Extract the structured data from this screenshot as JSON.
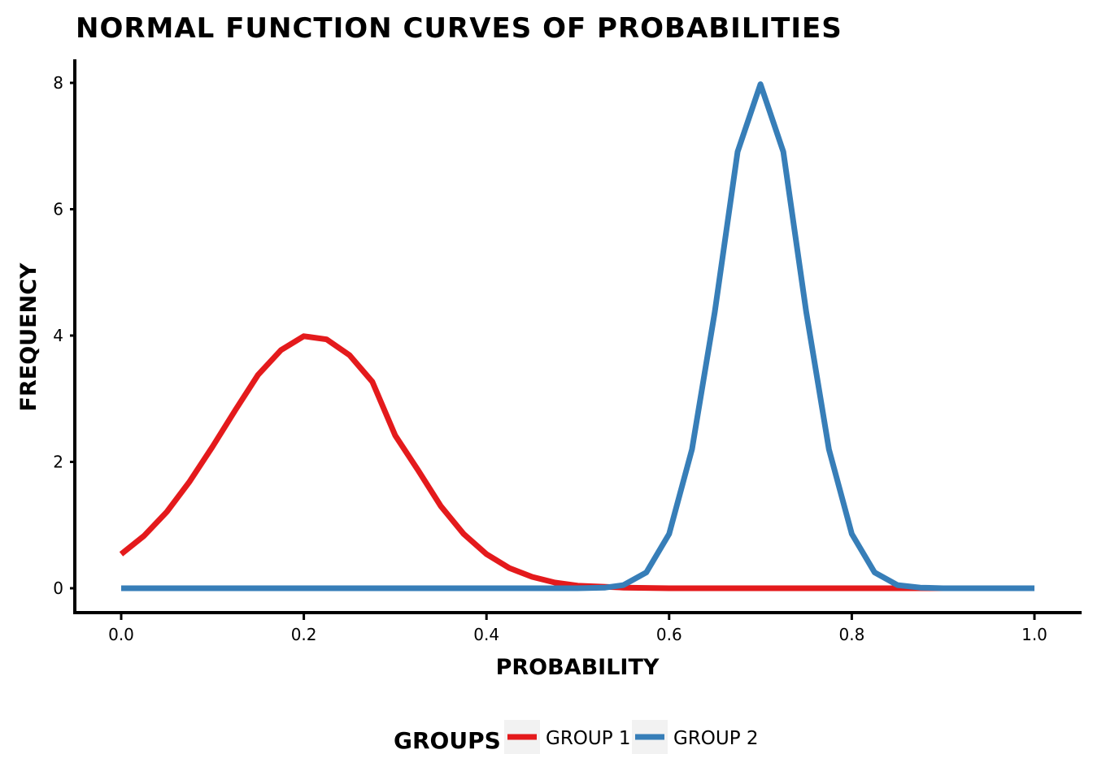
{
  "chart_data": {
    "type": "line",
    "title": "NORMAL FUNCTION CURVES OF PROBABILITIES",
    "xlabel": "PROBABILITY",
    "ylabel": "FREQUENCY",
    "xlim": [
      0.0,
      1.0
    ],
    "ylim": [
      0,
      8
    ],
    "x_ticks": [
      "0.0",
      "0.2",
      "0.4",
      "0.6",
      "0.8",
      "1.0"
    ],
    "y_ticks": [
      "0",
      "2",
      "4",
      "6",
      "8"
    ],
    "grid": false,
    "legend": {
      "title": "GROUPS",
      "position": "bottom"
    },
    "series": [
      {
        "name": "GROUP 1",
        "color": "#e41a1c",
        "x": [
          0.0,
          0.025,
          0.05,
          0.075,
          0.1,
          0.125,
          0.15,
          0.175,
          0.2,
          0.225,
          0.25,
          0.275,
          0.3,
          0.325,
          0.35,
          0.375,
          0.4,
          0.425,
          0.45,
          0.475,
          0.5,
          0.55,
          0.6,
          0.7,
          0.8,
          0.9,
          1.0
        ],
        "values": [
          0.54,
          0.83,
          1.21,
          1.69,
          2.24,
          2.82,
          3.38,
          3.77,
          3.99,
          3.94,
          3.69,
          3.27,
          2.42,
          1.87,
          1.3,
          0.86,
          0.54,
          0.32,
          0.18,
          0.09,
          0.04,
          0.01,
          0.0,
          0.0,
          0.0,
          0.0,
          0.0
        ]
      },
      {
        "name": "GROUP 2",
        "color": "#377eb8",
        "x": [
          0.0,
          0.1,
          0.2,
          0.3,
          0.4,
          0.5,
          0.53,
          0.55,
          0.575,
          0.6,
          0.625,
          0.65,
          0.675,
          0.7,
          0.725,
          0.75,
          0.775,
          0.8,
          0.825,
          0.85,
          0.875,
          0.9,
          1.0
        ],
        "values": [
          0.0,
          0.0,
          0.0,
          0.0,
          0.0,
          0.0,
          0.01,
          0.05,
          0.25,
          0.86,
          2.2,
          4.38,
          6.91,
          7.98,
          6.91,
          4.38,
          2.2,
          0.86,
          0.25,
          0.05,
          0.01,
          0.0,
          0.0
        ]
      }
    ]
  }
}
